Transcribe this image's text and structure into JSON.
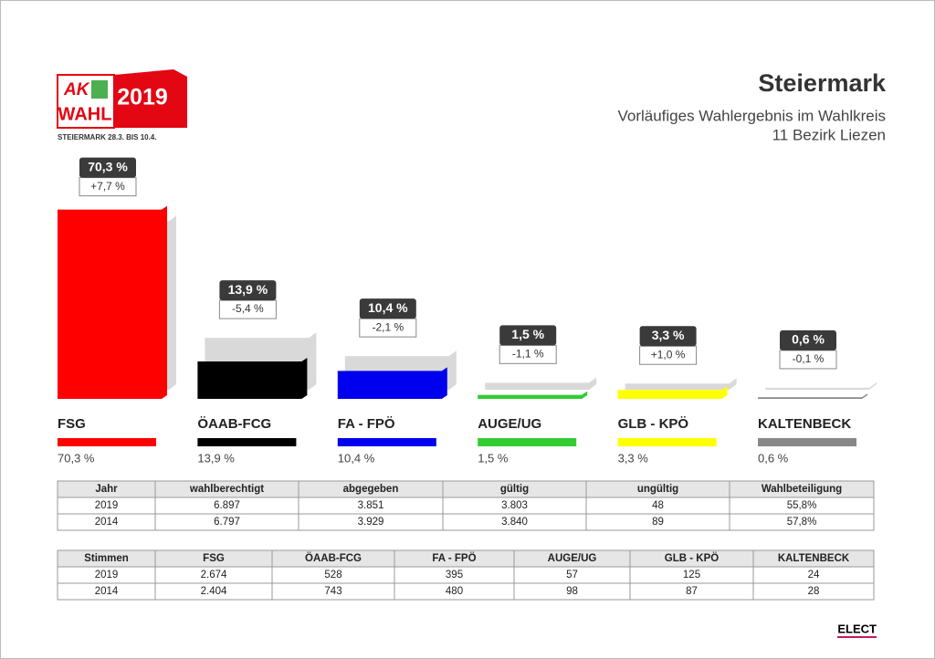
{
  "header": {
    "logo_brand": "AK",
    "logo_word": "WAHL",
    "logo_year": "2019",
    "logo_caption": "STEIERMARK 28.3. BIS 10.4.",
    "title": "Steiermark",
    "subtitle_1": "Vorläufiges Wahlergebnis im Wahlkreis",
    "subtitle_2": "11 Bezirk Liezen"
  },
  "chart_data": {
    "type": "bar",
    "categories": [
      "FSG",
      "ÖAAB-FCG",
      "FA - FPÖ",
      "AUGE/UG",
      "GLB - KPÖ",
      "KALTENBECK"
    ],
    "values": [
      70.3,
      13.9,
      10.4,
      1.5,
      3.3,
      0.6
    ],
    "value_labels": [
      "70,3 %",
      "13,9 %",
      "10,4 %",
      "1,5 %",
      "3,3 %",
      "0,6 %"
    ],
    "changes": [
      7.7,
      -5.4,
      -2.1,
      -1.1,
      1.0,
      -0.1
    ],
    "change_labels": [
      "+7,7 %",
      "-5,4 %",
      "-2,1 %",
      "-1,1 %",
      "+1,0 %",
      "-0,1 %"
    ],
    "previous_values": [
      62.6,
      19.3,
      12.5,
      2.6,
      2.3,
      0.7
    ],
    "colors": [
      "#ff0000",
      "#000000",
      "#0000ee",
      "#33cc33",
      "#ffff00",
      "#888888"
    ],
    "previous_color": "#d9d9d9"
  },
  "tables": [
    {
      "columns": [
        "Jahr",
        "wahlberechtigt",
        "abgegeben",
        "gültig",
        "ungültig",
        "Wahlbeteiligung"
      ],
      "rows": [
        [
          "2019",
          "6.897",
          "3.851",
          "3.803",
          "48",
          "55,8%"
        ],
        [
          "2014",
          "6.797",
          "3.929",
          "3.840",
          "89",
          "57,8%"
        ]
      ]
    },
    {
      "columns": [
        "Stimmen",
        "FSG",
        "ÖAAB-FCG",
        "FA - FPÖ",
        "AUGE/UG",
        "GLB - KPÖ",
        "KALTENBECK"
      ],
      "rows": [
        [
          "2019",
          "2.674",
          "528",
          "395",
          "57",
          "125",
          "24"
        ],
        [
          "2014",
          "2.404",
          "743",
          "480",
          "98",
          "87",
          "28"
        ]
      ]
    }
  ],
  "footer": "ELECT"
}
